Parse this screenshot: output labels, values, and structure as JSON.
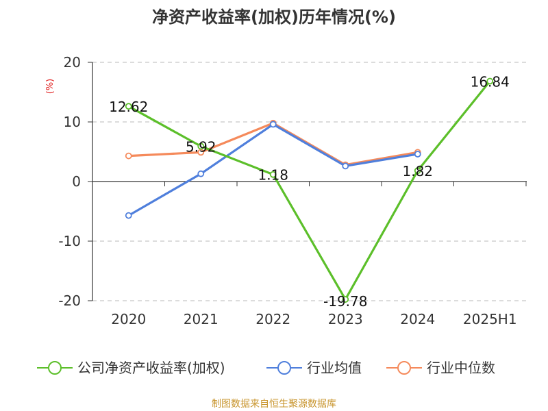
{
  "chart_data": {
    "type": "line",
    "title": "净资产收益率(加权)历年情况(%)",
    "ylabel": "(%)",
    "categories": [
      "2020",
      "2021",
      "2022",
      "2023",
      "2024",
      "2025H1"
    ],
    "y_ticks": [
      "20",
      "10",
      "0",
      "-10",
      "-20"
    ],
    "ylim": [
      -20,
      20
    ],
    "grid": true,
    "legend_position": "bottom",
    "series": [
      {
        "name": "公司净资产收益率(加权)",
        "color": "#5cbf2a",
        "values": [
          12.62,
          5.92,
          1.18,
          -19.78,
          1.82,
          16.84
        ],
        "labels": [
          "12.62",
          "5.92",
          "1.18",
          "-19.78",
          "1.82",
          "16.84"
        ]
      },
      {
        "name": "行业均值",
        "color": "#4f7fdc",
        "values": [
          -5.7,
          1.3,
          9.6,
          2.6,
          4.6,
          null
        ]
      },
      {
        "name": "行业中位数",
        "color": "#f58a5b",
        "values": [
          4.3,
          4.9,
          9.8,
          2.8,
          4.9,
          null
        ]
      }
    ],
    "source": "制图数据来自恒生聚源数据库"
  }
}
